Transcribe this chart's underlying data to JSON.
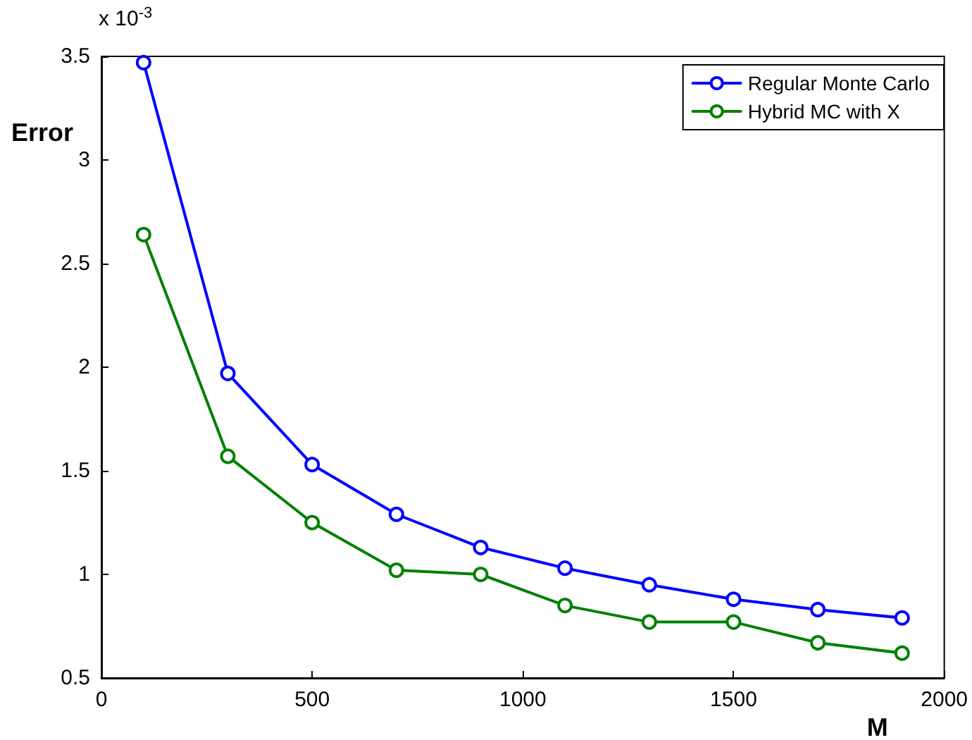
{
  "chart_data": {
    "type": "line",
    "xlabel": "M",
    "ylabel": "Error",
    "annotations": [
      "x 10$^{-3}$"
    ],
    "x": [
      100,
      300,
      500,
      700,
      900,
      1100,
      1300,
      1500,
      1700,
      1900
    ],
    "series": [
      {
        "name": "Regular Monte Carlo",
        "color": "#0000ff",
        "values": [
          3.47,
          1.97,
          1.53,
          1.29,
          1.13,
          1.03,
          0.95,
          0.88,
          0.83,
          0.79
        ]
      },
      {
        "name": "Hybrid MC with X",
        "color": "#008000",
        "values": [
          2.64,
          1.57,
          1.25,
          1.02,
          1.0,
          0.85,
          0.77,
          0.77,
          0.67,
          0.62
        ]
      }
    ],
    "xlim": [
      0,
      2000
    ],
    "xticks": [
      0,
      500,
      1000,
      1500,
      2000
    ],
    "ylim": [
      0.5,
      3.5
    ],
    "yticks": [
      0.5,
      1,
      1.5,
      2,
      2.5,
      3,
      3.5
    ],
    "grid": false,
    "legend": "top right",
    "marker": "circle",
    "line_style": "solid"
  }
}
